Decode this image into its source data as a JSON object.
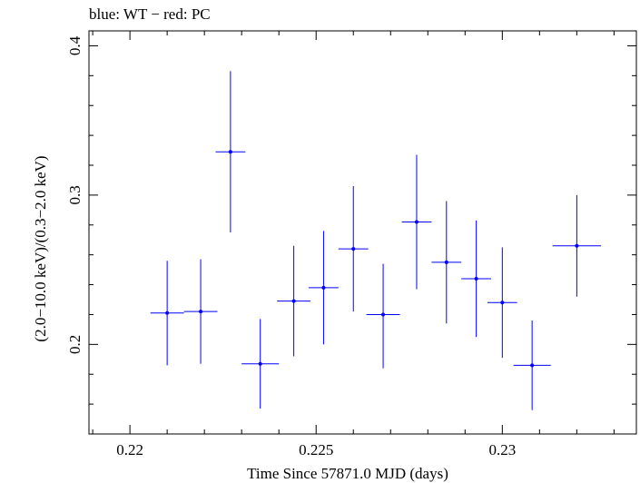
{
  "chart_data": {
    "type": "scatter",
    "title": "blue: WT − red: PC",
    "xlabel": "Time Since 57871.0 MJD (days)",
    "ylabel": "(2.0−10.0 keV)/(0.3−2.0 keV)",
    "xlim": [
      0.2189,
      0.2336
    ],
    "ylim": [
      0.14,
      0.41
    ],
    "xticks": [
      0.22,
      0.225,
      0.23
    ],
    "xtick_labels": [
      "0.22",
      "0.225",
      "0.23"
    ],
    "yticks": [
      0.2,
      0.3,
      0.4
    ],
    "ytick_labels": [
      "0.2",
      "0.3",
      "0.4"
    ],
    "grid": false,
    "series": [
      {
        "color": "#0000ff",
        "points": [
          {
            "x": 0.221,
            "xerr": 0.00045,
            "y": 0.221,
            "yerr_low": 0.035,
            "yerr_high": 0.035
          },
          {
            "x": 0.2219,
            "xerr": 0.00045,
            "y": 0.222,
            "yerr_low": 0.035,
            "yerr_high": 0.035
          },
          {
            "x": 0.2227,
            "xerr": 0.0004,
            "y": 0.329,
            "yerr_low": 0.054,
            "yerr_high": 0.054
          },
          {
            "x": 0.2235,
            "xerr": 0.0005,
            "y": 0.187,
            "yerr_low": 0.03,
            "yerr_high": 0.03
          },
          {
            "x": 0.2244,
            "xerr": 0.00045,
            "y": 0.229,
            "yerr_low": 0.037,
            "yerr_high": 0.037
          },
          {
            "x": 0.2252,
            "xerr": 0.0004,
            "y": 0.238,
            "yerr_low": 0.038,
            "yerr_high": 0.038
          },
          {
            "x": 0.226,
            "xerr": 0.0004,
            "y": 0.264,
            "yerr_low": 0.042,
            "yerr_high": 0.042
          },
          {
            "x": 0.2268,
            "xerr": 0.00045,
            "y": 0.22,
            "yerr_low": 0.036,
            "yerr_high": 0.034
          },
          {
            "x": 0.2277,
            "xerr": 0.0004,
            "y": 0.282,
            "yerr_low": 0.045,
            "yerr_high": 0.045
          },
          {
            "x": 0.2285,
            "xerr": 0.0004,
            "y": 0.255,
            "yerr_low": 0.041,
            "yerr_high": 0.041
          },
          {
            "x": 0.2293,
            "xerr": 0.0004,
            "y": 0.244,
            "yerr_low": 0.039,
            "yerr_high": 0.039
          },
          {
            "x": 0.23,
            "xerr": 0.0004,
            "y": 0.228,
            "yerr_low": 0.037,
            "yerr_high": 0.037
          },
          {
            "x": 0.2308,
            "xerr": 0.0005,
            "y": 0.186,
            "yerr_low": 0.03,
            "yerr_high": 0.03
          },
          {
            "x": 0.232,
            "xerr": 0.00065,
            "y": 0.266,
            "yerr_low": 0.034,
            "yerr_high": 0.034
          }
        ]
      }
    ]
  }
}
